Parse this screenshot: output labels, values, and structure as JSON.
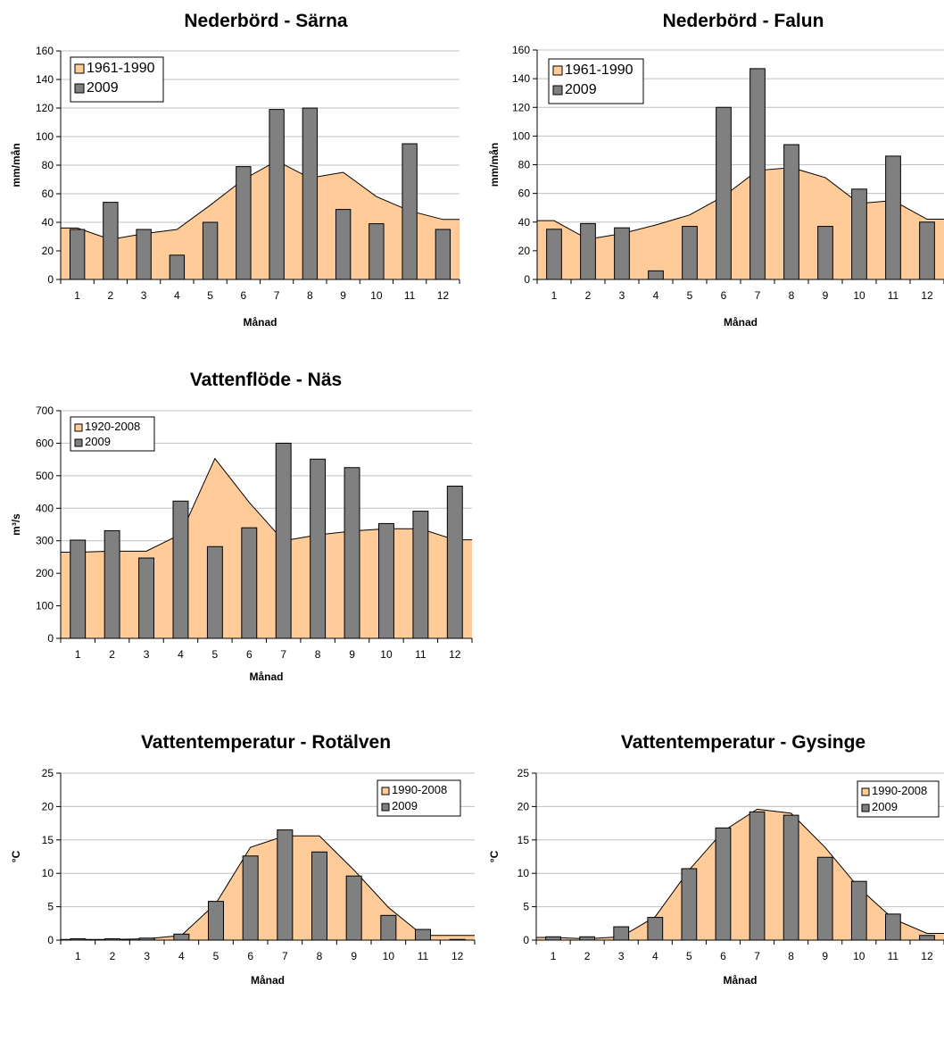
{
  "colors": {
    "area_fill": "#FFCC99",
    "area_stroke": "#000000",
    "bar_fill": "#808080",
    "grid": "#C0C0C0"
  },
  "chart_data": [
    {
      "type": "bar",
      "title": "Nederbörd - Särna",
      "xlabel": "Månad",
      "ylabel": "mm/mån",
      "ylim": [
        0,
        160
      ],
      "yticks": [
        "0",
        "20",
        "40",
        "60",
        "80",
        "100",
        "120",
        "140",
        "160"
      ],
      "categories": [
        "1",
        "2",
        "3",
        "4",
        "5",
        "6",
        "7",
        "8",
        "9",
        "10",
        "11",
        "12"
      ],
      "legend_position": "top-left",
      "series": [
        {
          "name": "1961-1990",
          "kind": "area",
          "values": [
            36,
            28,
            32,
            35,
            52,
            70,
            83,
            71,
            75,
            58,
            48,
            42
          ]
        },
        {
          "name": "2009",
          "kind": "bar",
          "values": [
            35,
            54,
            35,
            17,
            40,
            79,
            119,
            120,
            49,
            39,
            95,
            35
          ]
        }
      ]
    },
    {
      "type": "bar",
      "title": "Nederbörd - Falun",
      "xlabel": "Månad",
      "ylabel": "mm/mån",
      "ylim": [
        0,
        160
      ],
      "yticks": [
        "0",
        "20",
        "40",
        "60",
        "80",
        "100",
        "120",
        "140",
        "160"
      ],
      "categories": [
        "1",
        "2",
        "3",
        "4",
        "5",
        "6",
        "7",
        "8",
        "9",
        "10",
        "11",
        "12"
      ],
      "legend_position": "top-left",
      "series": [
        {
          "name": "1961-1990",
          "kind": "area",
          "values": [
            41,
            28,
            32,
            38,
            45,
            58,
            76,
            78,
            71,
            53,
            55,
            42
          ]
        },
        {
          "name": "2009",
          "kind": "bar",
          "values": [
            35,
            39,
            36,
            6,
            37,
            120,
            147,
            94,
            37,
            63,
            86,
            40
          ]
        }
      ]
    },
    {
      "type": "bar",
      "title": "Vattenflöde - Näs",
      "xlabel": "Månad",
      "ylabel": "m³/s",
      "ylim": [
        0,
        700
      ],
      "yticks": [
        "0",
        "100",
        "200",
        "300",
        "400",
        "500",
        "600",
        "700"
      ],
      "categories": [
        "1",
        "2",
        "3",
        "4",
        "5",
        "6",
        "7",
        "8",
        "9",
        "10",
        "11",
        "12"
      ],
      "legend_position": "top-left",
      "series": [
        {
          "name": "1920-2008",
          "kind": "area",
          "values": [
            265,
            268,
            268,
            320,
            553,
            418,
            300,
            318,
            330,
            337,
            337,
            303
          ]
        },
        {
          "name": "2009",
          "kind": "bar",
          "values": [
            302,
            331,
            247,
            422,
            282,
            340,
            600,
            551,
            525,
            353,
            391,
            468
          ]
        }
      ]
    },
    {
      "type": "bar",
      "title": "Vattentemperatur - Rotälven",
      "xlabel": "Månad",
      "ylabel": "°C",
      "ylim": [
        0,
        25
      ],
      "yticks": [
        "0",
        "5",
        "10",
        "15",
        "20",
        "25"
      ],
      "categories": [
        "1",
        "2",
        "3",
        "4",
        "5",
        "6",
        "7",
        "8",
        "9",
        "10",
        "11",
        "12"
      ],
      "legend_position": "top-right",
      "series": [
        {
          "name": "1990-2008",
          "kind": "area",
          "values": [
            0.1,
            0.1,
            0.2,
            0.7,
            5.5,
            13.9,
            15.6,
            15.6,
            10.5,
            4.9,
            0.7,
            0.7
          ]
        },
        {
          "name": "2009",
          "kind": "bar",
          "values": [
            0.2,
            0.2,
            0.3,
            0.9,
            5.8,
            12.6,
            16.5,
            13.2,
            9.6,
            3.7,
            1.6,
            0.1
          ]
        }
      ]
    },
    {
      "type": "bar",
      "title": "Vattentemperatur - Gysinge",
      "xlabel": "Månad",
      "ylabel": "°C",
      "ylim": [
        0,
        25
      ],
      "yticks": [
        "0",
        "5",
        "10",
        "15",
        "20",
        "25"
      ],
      "categories": [
        "1",
        "2",
        "3",
        "4",
        "5",
        "6",
        "7",
        "8",
        "9",
        "10",
        "11",
        "12"
      ],
      "legend_position": "top-right",
      "series": [
        {
          "name": "1990-2008",
          "kind": "area",
          "values": [
            0.4,
            0.2,
            0.5,
            3.5,
            10.5,
            16.3,
            19.6,
            19.0,
            13.9,
            7.8,
            3.2,
            1.0
          ]
        },
        {
          "name": "2009",
          "kind": "bar",
          "values": [
            0.5,
            0.5,
            2.0,
            3.4,
            10.7,
            16.8,
            19.2,
            18.7,
            12.4,
            8.8,
            3.9,
            0.7
          ]
        }
      ]
    }
  ]
}
